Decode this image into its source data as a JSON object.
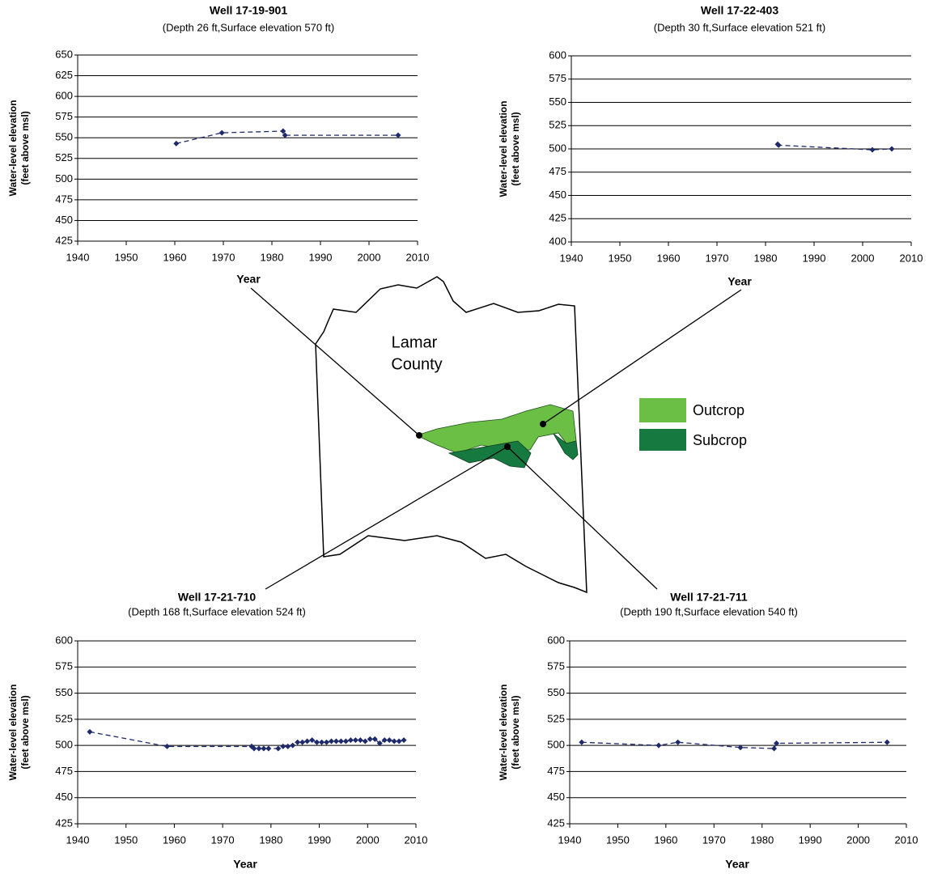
{
  "chart_data": [
    {
      "type": "line",
      "title": "Well 17-19-901",
      "subtitle": "(Depth 26 ft,Surface elevation 570 ft)",
      "xlabel": "Year",
      "ylabel": [
        "Water-level elevation",
        "(feet above msl)"
      ],
      "x": [
        1960.3,
        1969.7,
        1982.3,
        1982.7,
        2006
      ],
      "values": [
        543,
        556,
        558,
        553,
        553
      ],
      "color": "#1f2a6b",
      "line_style": "dashed",
      "grid": true,
      "xlim": [
        1940,
        2010
      ],
      "xticks": [
        1940,
        1950,
        1960,
        1970,
        1980,
        1990,
        2000,
        2010
      ],
      "ylim": [
        425,
        650
      ],
      "yticks": [
        425,
        450,
        475,
        500,
        525,
        550,
        575,
        600,
        625,
        650
      ]
    },
    {
      "type": "line",
      "title": "Well 17-22-403",
      "subtitle": "(Depth 30 ft,Surface elevation 521 ft)",
      "xlabel": "Year",
      "ylabel": [
        "Water-level elevation",
        "(feet above msl)"
      ],
      "x": [
        1982.5,
        1982.7,
        2002,
        2006
      ],
      "values": [
        505,
        504,
        499,
        500
      ],
      "color": "#1f2a6b",
      "line_style": "dashed",
      "grid": true,
      "xlim": [
        1940,
        2010
      ],
      "xticks": [
        1940,
        1950,
        1960,
        1970,
        1980,
        1990,
        2000,
        2010
      ],
      "ylim": [
        400,
        600
      ],
      "yticks": [
        400,
        425,
        450,
        475,
        500,
        525,
        550,
        575,
        600
      ]
    },
    {
      "type": "line",
      "title": "Well 17-21-710",
      "subtitle": "(Depth 168 ft,Surface elevation 524 ft)",
      "xlabel": "Year",
      "ylabel": [
        "Water-level elevation",
        "(feet above msl)"
      ],
      "x": [
        1942.5,
        1958.5,
        1976,
        1976.5,
        1977.5,
        1978.5,
        1979.5,
        1981.5,
        1982.5,
        1983.5,
        1984.5,
        1985.5,
        1986.5,
        1987.5,
        1988.5,
        1989.5,
        1990.5,
        1991.5,
        1992.5,
        1993.5,
        1994.5,
        1995.5,
        1996.5,
        1997.5,
        1998.5,
        1999.5,
        2000.5,
        2001.5,
        2002.5,
        2003.5,
        2004.5,
        2005.5,
        2006.5,
        2007.5
      ],
      "values": [
        513,
        499,
        499,
        497,
        497,
        497,
        497,
        497,
        499,
        499,
        500,
        503,
        503,
        504,
        505,
        503,
        503,
        503,
        504,
        504,
        504,
        504,
        505,
        505,
        505,
        504,
        506,
        506,
        502,
        505,
        505,
        504,
        504,
        505
      ],
      "color": "#1f2a6b",
      "line_style": "dashed",
      "grid": true,
      "xlim": [
        1940,
        2010
      ],
      "xticks": [
        1940,
        1950,
        1960,
        1970,
        1980,
        1990,
        2000,
        2010
      ],
      "ylim": [
        425,
        600
      ],
      "yticks": [
        425,
        450,
        475,
        500,
        525,
        550,
        575,
        600
      ]
    },
    {
      "type": "line",
      "title": "Well 17-21-711",
      "subtitle": "(Depth 190 ft,Surface elevation 540 ft)",
      "xlabel": "Year",
      "ylabel": [
        "Water-level elevation",
        "(feet above msl)"
      ],
      "x": [
        1942.5,
        1958.5,
        1962.5,
        1975.5,
        1982.5,
        1983,
        2006
      ],
      "values": [
        503,
        500,
        503,
        498,
        497,
        502,
        503
      ],
      "color": "#1f2a6b",
      "line_style": "dashed",
      "grid": true,
      "xlim": [
        1940,
        2010
      ],
      "xticks": [
        1940,
        1950,
        1960,
        1970,
        1980,
        1990,
        2000,
        2010
      ],
      "ylim": [
        425,
        600
      ],
      "yticks": [
        425,
        450,
        475,
        500,
        525,
        550,
        575,
        600
      ]
    }
  ],
  "map": {
    "label": [
      "Lamar",
      "County"
    ],
    "legend": [
      {
        "name": "Outcrop",
        "color": "#6cbf45"
      },
      {
        "name": "Subcrop",
        "color": "#167a40"
      }
    ]
  }
}
